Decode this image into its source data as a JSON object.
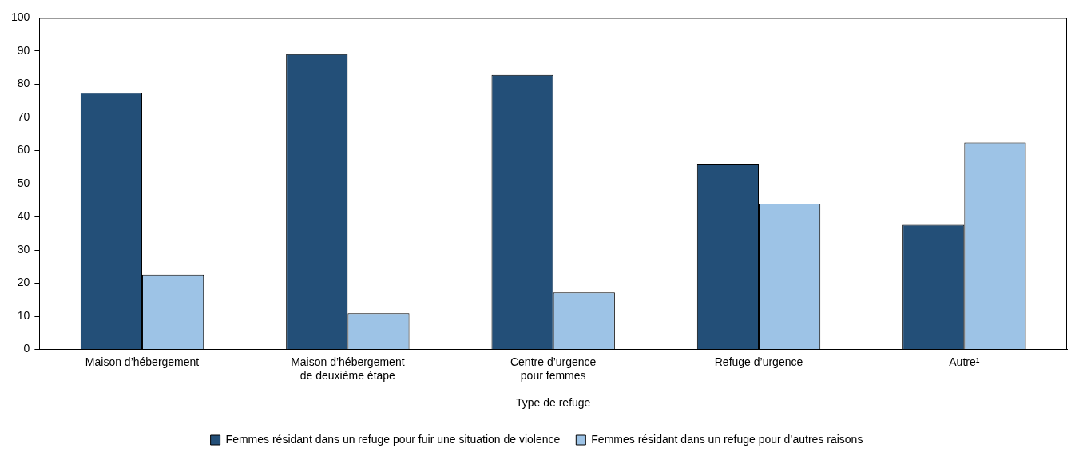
{
  "chart_data": {
    "type": "bar",
    "xlabel": "Type de refuge",
    "categories": [
      "Maison d’hébergement",
      "Maison d’hébergement\nde deuxième étape",
      "Centre d’urgence\npour femmes",
      "Refuge d’urgence",
      "Autre¹"
    ],
    "series": [
      {
        "name": "Femmes résidant dans un refuge pour fuir une situation de violence",
        "color": "#234f78",
        "values": [
          77.4,
          89.1,
          82.8,
          56.0,
          37.6
        ]
      },
      {
        "name": "Femmes résidant dans un refuge pour d’autres raisons",
        "color": "#9dc3e6",
        "values": [
          22.6,
          10.9,
          17.2,
          44.0,
          62.4
        ]
      }
    ],
    "ylim": [
      0,
      100
    ],
    "yticks": [
      0,
      10,
      20,
      30,
      40,
      50,
      60,
      70,
      80,
      90,
      100
    ],
    "grid": false,
    "legend": "bottom"
  }
}
